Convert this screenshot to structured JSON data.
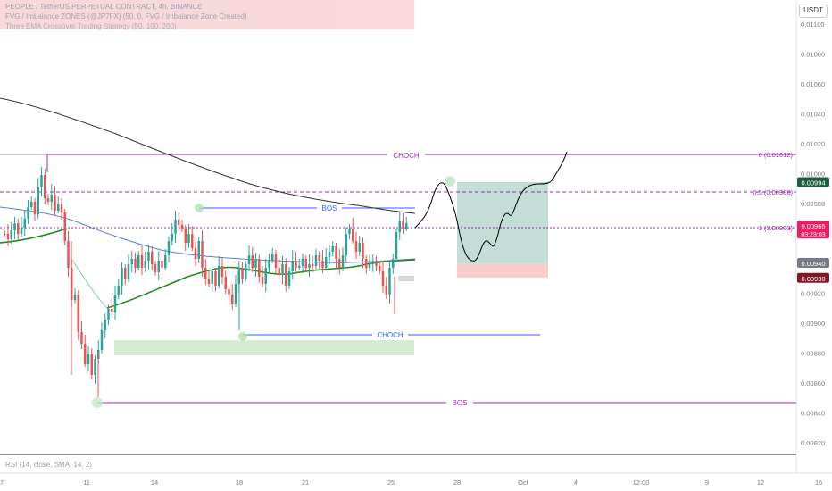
{
  "header": {
    "symbol_line": "PEOPLE / TetherUS PERPETUAL CONTRACT, 4h, BINANCE",
    "indicator_fvg": "FVG / Imbalance ZONES (@JP7FX) (50, 0, FVG / Imbalance Zone Created)",
    "indicator_ema": "Three EMA Crossover Trading Strategy (50, 100, 200)"
  },
  "currency_button": "USDT",
  "rsi_label": "RSI (14, close, SMA, 14, 2)",
  "price_axis": {
    "ticks": [
      {
        "value": 0.011,
        "label": "0.01100"
      },
      {
        "value": 0.0108,
        "label": "0.01080"
      },
      {
        "value": 0.0106,
        "label": "0.01060"
      },
      {
        "value": 0.0104,
        "label": "0.01040"
      },
      {
        "value": 0.0102,
        "label": "0.01020"
      },
      {
        "value": 0.01,
        "label": "0.01000"
      },
      {
        "value": 0.0098,
        "label": "0.00980"
      },
      {
        "value": 0.0096,
        "label": "0.00960"
      },
      {
        "value": 0.0094,
        "label": "0.00940"
      },
      {
        "value": 0.0092,
        "label": "0.00920"
      },
      {
        "value": 0.009,
        "label": "0.00900"
      },
      {
        "value": 0.0088,
        "label": "0.00880"
      },
      {
        "value": 0.0086,
        "label": "0.00860"
      },
      {
        "value": 0.0084,
        "label": "0.00840"
      },
      {
        "value": 0.0082,
        "label": "0.00820"
      }
    ],
    "badges": [
      {
        "value": 0.00994,
        "label": "0.00994",
        "sublabel": "",
        "color": "#1e5e3c"
      },
      {
        "value": 0.00965,
        "label": "0.00965",
        "sublabel": "03:23:03",
        "color": "#e91e63"
      },
      {
        "value": 0.0094,
        "label": "0.00940",
        "sublabel": "",
        "color": "#787b86"
      },
      {
        "value": 0.0093,
        "label": "0.00930",
        "sublabel": "",
        "color": "#801922"
      }
    ]
  },
  "time_axis": [
    "7",
    "11",
    "14",
    "18",
    "21",
    "25",
    "28",
    "Oct",
    "4",
    "12:00",
    "9",
    "12",
    "16"
  ],
  "annotations": {
    "choch_top": "CHOCH",
    "bos_mid": "BOS",
    "choch_low": "CHOCH",
    "bos_bottom": "BOS",
    "fib_0": "0 (0.01012)",
    "fib_05": "0.5 (0.00988)",
    "fib_1": "1 (0.00963)"
  },
  "colors": {
    "up": "#26a69a",
    "down": "#ef5350",
    "purple": "#9c27b0",
    "blue": "#2962ff",
    "ema50": "#1b8a1b",
    "ema100": "#5b7fd6",
    "ema200": "#333333",
    "target_zone": "#4f9d86",
    "stop_zone": "#e57373",
    "fvg_zone": "#b7e1b0"
  }
}
